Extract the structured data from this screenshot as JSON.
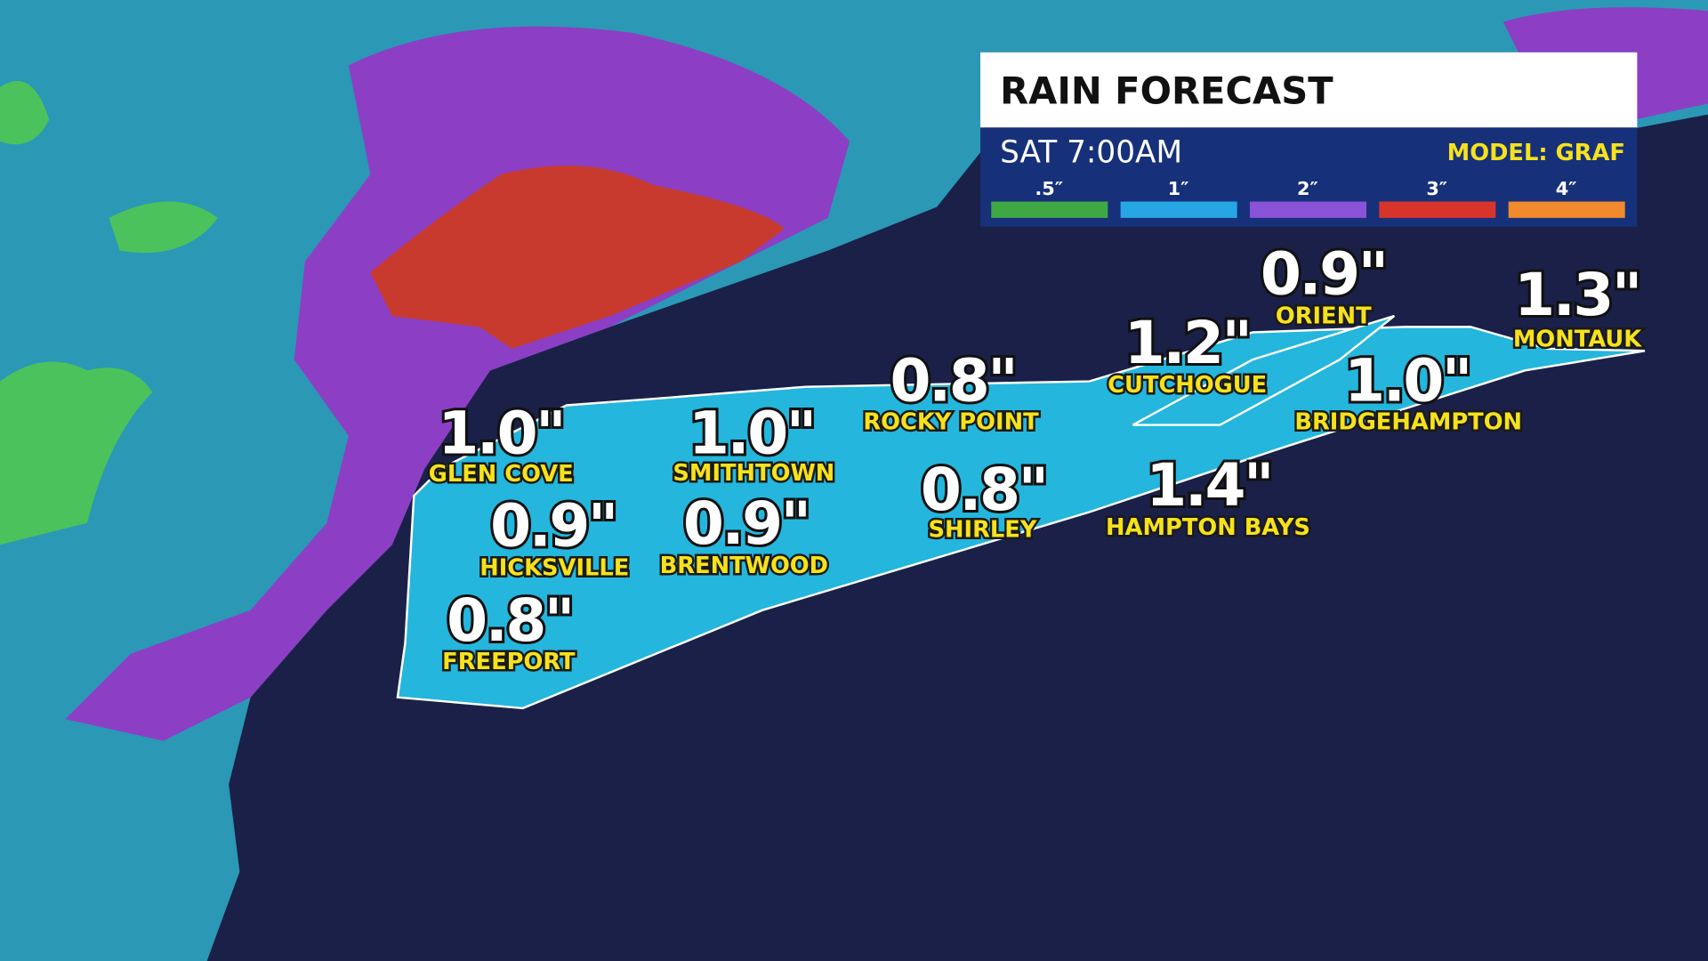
{
  "header": {
    "title": "RAIN FORECAST",
    "time": "SAT 7:00AM",
    "model": "MODEL: GRAF"
  },
  "legend": [
    {
      "label": ".5″",
      "color": "#3fa845"
    },
    {
      "label": "1″",
      "color": "#27a6e6"
    },
    {
      "label": "2″",
      "color": "#8a52d6"
    },
    {
      "label": "3″",
      "color": "#d9342b"
    },
    {
      "label": "4″",
      "color": "#f08a2c"
    }
  ],
  "locations": [
    {
      "name": "GLEN COVE",
      "amount": "1.0\""
    },
    {
      "name": "SMITHTOWN",
      "amount": "1.0\""
    },
    {
      "name": "HICKSVILLE",
      "amount": "0.9\""
    },
    {
      "name": "BRENTWOOD",
      "amount": "0.9\""
    },
    {
      "name": "FREEPORT",
      "amount": "0.8\""
    },
    {
      "name": "ROCKY POINT",
      "amount": "0.8\""
    },
    {
      "name": "SHIRLEY",
      "amount": "0.8\""
    },
    {
      "name": "CUTCHOGUE",
      "amount": "1.2\""
    },
    {
      "name": "ORIENT",
      "amount": "0.9\""
    },
    {
      "name": "HAMPTON BAYS",
      "amount": "1.4\""
    },
    {
      "name": "BRIDGEHAMPTON",
      "amount": "1.0\""
    },
    {
      "name": "MONTAUK",
      "amount": "1.3\""
    }
  ]
}
